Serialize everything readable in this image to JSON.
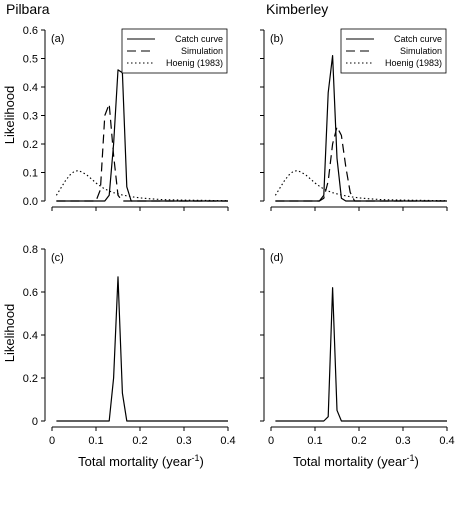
{
  "headers": {
    "left": "Pilbara",
    "right": "Kimberley"
  },
  "ylabel": "Likelihood",
  "xlabel": {
    "text": "Total mortality (year",
    "sup": "-1",
    "tail": ")"
  },
  "legend": {
    "placement": "top-right",
    "entries": [
      {
        "label": "Catch curve",
        "style": "solid"
      },
      {
        "label": "Simulation",
        "style": "dashed"
      },
      {
        "label": "Hoenig (1983)",
        "style": "dotted"
      }
    ]
  },
  "chart_data": [
    {
      "panel": "(a)",
      "region": "Pilbara",
      "type": "line",
      "xlim": [
        0,
        0.4
      ],
      "ylim": [
        0,
        0.6
      ],
      "xticks": [
        "0",
        "0.1",
        "0.2",
        "0.3",
        "0.4"
      ],
      "yticks": [
        "0.0",
        "0.1",
        "0.2",
        "0.3",
        "0.4",
        "0.5",
        "0.6"
      ],
      "show_x_tick_labels": false,
      "show_y_tick_labels": true,
      "series": [
        {
          "name": "Catch curve",
          "style": "solid",
          "x": [
            0.01,
            0.12,
            0.13,
            0.14,
            0.15,
            0.16,
            0.17,
            0.18,
            0.4
          ],
          "y": [
            0.0,
            0.0,
            0.02,
            0.2,
            0.46,
            0.45,
            0.05,
            0.0,
            0.0
          ]
        },
        {
          "name": "Simulation",
          "style": "dashed",
          "x": [
            0.01,
            0.1,
            0.11,
            0.12,
            0.13,
            0.14,
            0.15,
            0.16,
            0.4
          ],
          "y": [
            0.0,
            0.0,
            0.04,
            0.3,
            0.34,
            0.16,
            0.02,
            0.0,
            0.0
          ]
        },
        {
          "name": "Hoenig (1983)",
          "style": "dotted",
          "x": [
            0.01,
            0.02,
            0.03,
            0.04,
            0.05,
            0.06,
            0.07,
            0.08,
            0.09,
            0.1,
            0.11,
            0.12,
            0.13,
            0.14,
            0.16,
            0.18,
            0.2,
            0.22,
            0.25,
            0.3,
            0.35,
            0.4
          ],
          "y": [
            0.02,
            0.045,
            0.07,
            0.09,
            0.103,
            0.107,
            0.1,
            0.09,
            0.077,
            0.063,
            0.052,
            0.042,
            0.035,
            0.029,
            0.021,
            0.015,
            0.011,
            0.008,
            0.005,
            0.003,
            0.002,
            0.001
          ]
        }
      ]
    },
    {
      "panel": "(b)",
      "region": "Kimberley",
      "type": "line",
      "xlim": [
        0,
        0.4
      ],
      "ylim": [
        0,
        0.6
      ],
      "xticks": [
        "0",
        "0.1",
        "0.2",
        "0.3",
        "0.4"
      ],
      "yticks": [
        "0.0",
        "0.1",
        "0.2",
        "0.3",
        "0.4",
        "0.5",
        "0.6"
      ],
      "show_x_tick_labels": false,
      "show_y_tick_labels": false,
      "series": [
        {
          "name": "Catch curve",
          "style": "solid",
          "x": [
            0.01,
            0.11,
            0.12,
            0.13,
            0.14,
            0.15,
            0.16,
            0.17,
            0.4
          ],
          "y": [
            0.0,
            0.0,
            0.02,
            0.38,
            0.51,
            0.15,
            0.01,
            0.0,
            0.0
          ]
        },
        {
          "name": "Simulation",
          "style": "dashed",
          "x": [
            0.01,
            0.11,
            0.12,
            0.13,
            0.14,
            0.15,
            0.16,
            0.17,
            0.18,
            0.19,
            0.4
          ],
          "y": [
            0.0,
            0.0,
            0.01,
            0.07,
            0.2,
            0.26,
            0.23,
            0.12,
            0.03,
            0.0,
            0.0
          ]
        },
        {
          "name": "Hoenig (1983)",
          "style": "dotted",
          "x": [
            0.01,
            0.02,
            0.03,
            0.04,
            0.05,
            0.06,
            0.07,
            0.08,
            0.09,
            0.1,
            0.11,
            0.12,
            0.13,
            0.14,
            0.16,
            0.18,
            0.2,
            0.22,
            0.25,
            0.3,
            0.35,
            0.4
          ],
          "y": [
            0.02,
            0.045,
            0.07,
            0.09,
            0.103,
            0.107,
            0.1,
            0.09,
            0.077,
            0.063,
            0.052,
            0.042,
            0.035,
            0.029,
            0.021,
            0.015,
            0.011,
            0.008,
            0.005,
            0.003,
            0.002,
            0.001
          ]
        }
      ]
    },
    {
      "panel": "(c)",
      "region": "Pilbara",
      "type": "line",
      "xlim": [
        0,
        0.4
      ],
      "ylim": [
        0,
        0.8
      ],
      "xticks": [
        "0",
        "0.1",
        "0.2",
        "0.3",
        "0.4"
      ],
      "yticks": [
        "0",
        "0.2",
        "0.4",
        "0.6",
        "0.8"
      ],
      "show_x_tick_labels": true,
      "show_y_tick_labels": true,
      "series": [
        {
          "style": "solid",
          "x": [
            0.01,
            0.13,
            0.14,
            0.15,
            0.16,
            0.17,
            0.4
          ],
          "y": [
            0.0,
            0.0,
            0.2,
            0.67,
            0.13,
            0.0,
            0.0
          ]
        }
      ]
    },
    {
      "panel": "(d)",
      "region": "Kimberley",
      "type": "line",
      "xlim": [
        0,
        0.4
      ],
      "ylim": [
        0,
        0.8
      ],
      "xticks": [
        "0",
        "0.1",
        "0.2",
        "0.3",
        "0.4"
      ],
      "yticks": [
        "0",
        "0.2",
        "0.4",
        "0.6",
        "0.8"
      ],
      "show_x_tick_labels": true,
      "show_y_tick_labels": false,
      "series": [
        {
          "style": "solid",
          "x": [
            0.01,
            0.12,
            0.13,
            0.14,
            0.15,
            0.16,
            0.4
          ],
          "y": [
            0.0,
            0.0,
            0.02,
            0.62,
            0.05,
            0.0,
            0.0
          ]
        }
      ]
    }
  ]
}
